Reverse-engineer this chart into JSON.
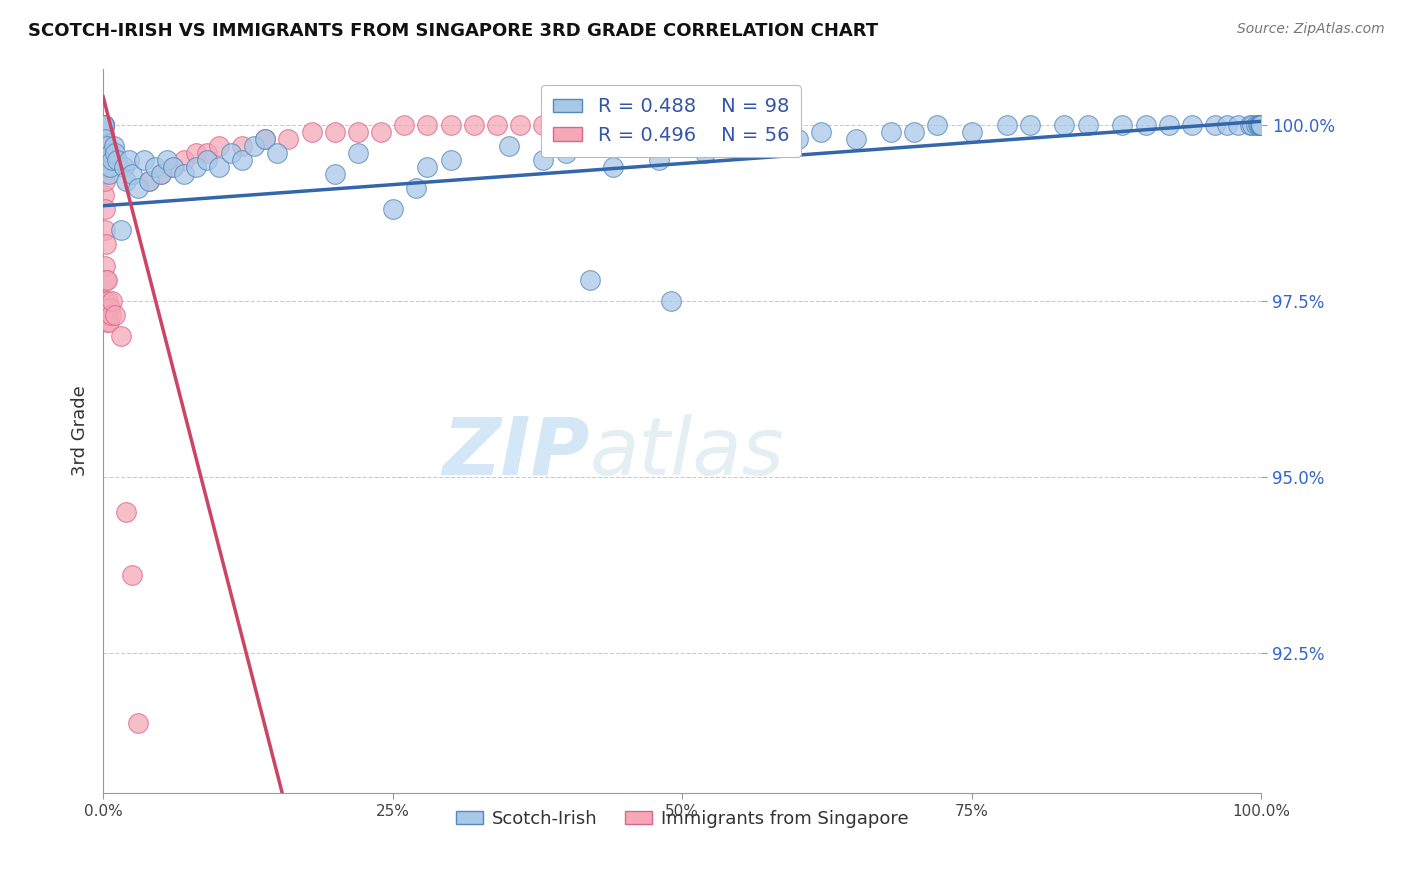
{
  "title": "SCOTCH-IRISH VS IMMIGRANTS FROM SINGAPORE 3RD GRADE CORRELATION CHART",
  "source_text": "Source: ZipAtlas.com",
  "ylabel": "3rd Grade",
  "r_blue": 0.488,
  "n_blue": 98,
  "r_pink": 0.496,
  "n_pink": 56,
  "blue_color": "#a8c8e8",
  "pink_color": "#f4a8b8",
  "blue_edge_color": "#5588bb",
  "pink_edge_color": "#dd6688",
  "blue_line_color": "#3366aa",
  "pink_line_color": "#cc4466",
  "legend_blue_label": "Scotch-Irish",
  "legend_pink_label": "Immigrants from Singapore",
  "watermark_zip": "ZIP",
  "watermark_atlas": "atlas",
  "xlim": [
    0,
    100
  ],
  "ylim": [
    90.5,
    100.8
  ],
  "y_ticks": [
    92.5,
    95.0,
    97.5,
    100.0
  ],
  "x_ticks": [
    0,
    25,
    50,
    75,
    100
  ],
  "blue_scatter_x": [
    0.1,
    0.1,
    0.1,
    0.1,
    0.1,
    0.2,
    0.2,
    0.3,
    0.3,
    0.4,
    0.5,
    0.6,
    0.7,
    0.8,
    0.9,
    1.0,
    1.2,
    1.5,
    1.8,
    2.0,
    2.2,
    2.5,
    3.0,
    3.5,
    4.0,
    4.5,
    5.0,
    5.5,
    6.0,
    7.0,
    8.0,
    9.0,
    10.0,
    11.0,
    12.0,
    13.0,
    14.0,
    15.0,
    20.0,
    22.0,
    25.0,
    27.0,
    28.0,
    30.0,
    35.0,
    38.0,
    40.0,
    42.0,
    44.0,
    45.0,
    46.0,
    47.0,
    48.0,
    49.0,
    50.0,
    51.0,
    52.0,
    53.0,
    54.0,
    55.0,
    56.0,
    57.0,
    58.0,
    60.0,
    62.0,
    65.0,
    68.0,
    70.0,
    72.0,
    75.0,
    78.0,
    80.0,
    83.0,
    85.0,
    88.0,
    90.0,
    92.0,
    94.0,
    96.0,
    97.0,
    98.0,
    99.0,
    99.2,
    99.5,
    99.7,
    99.8,
    99.9,
    100.0,
    100.0,
    100.0,
    100.0,
    100.0,
    100.0,
    100.0,
    100.0,
    100.0,
    100.0,
    100.0,
    100.0,
    100.0
  ],
  "blue_scatter_y": [
    100.0,
    100.0,
    100.0,
    100.0,
    99.5,
    99.6,
    99.8,
    99.4,
    99.7,
    99.5,
    99.3,
    99.4,
    99.6,
    99.5,
    99.7,
    99.6,
    99.5,
    98.5,
    99.4,
    99.2,
    99.5,
    99.3,
    99.1,
    99.5,
    99.2,
    99.4,
    99.3,
    99.5,
    99.4,
    99.3,
    99.4,
    99.5,
    99.4,
    99.6,
    99.5,
    99.7,
    99.8,
    99.6,
    99.3,
    99.6,
    98.8,
    99.1,
    99.4,
    99.5,
    99.7,
    99.5,
    99.6,
    97.8,
    99.4,
    99.7,
    99.8,
    99.9,
    99.5,
    97.5,
    99.7,
    99.8,
    99.6,
    99.7,
    99.8,
    99.9,
    99.8,
    99.9,
    99.7,
    99.8,
    99.9,
    99.8,
    99.9,
    99.9,
    100.0,
    99.9,
    100.0,
    100.0,
    100.0,
    100.0,
    100.0,
    100.0,
    100.0,
    100.0,
    100.0,
    100.0,
    100.0,
    100.0,
    100.0,
    100.0,
    100.0,
    100.0,
    100.0,
    100.0,
    100.0,
    100.0,
    100.0,
    100.0,
    100.0,
    100.0,
    100.0,
    100.0,
    100.0,
    100.0,
    100.0,
    100.0
  ],
  "pink_scatter_x": [
    0.05,
    0.05,
    0.05,
    0.05,
    0.08,
    0.08,
    0.1,
    0.1,
    0.1,
    0.1,
    0.12,
    0.15,
    0.15,
    0.2,
    0.2,
    0.2,
    0.25,
    0.25,
    0.3,
    0.3,
    0.35,
    0.4,
    0.5,
    0.6,
    0.7,
    0.8,
    1.0,
    1.5,
    2.0,
    2.5,
    3.0,
    4.0,
    5.0,
    6.0,
    7.0,
    8.0,
    9.0,
    10.0,
    12.0,
    14.0,
    16.0,
    18.0,
    20.0,
    22.0,
    24.0,
    26.0,
    28.0,
    30.0,
    32.0,
    34.0,
    36.0,
    38.0,
    40.0,
    42.0,
    44.0,
    46.0
  ],
  "pink_scatter_y": [
    100.0,
    100.0,
    100.0,
    99.8,
    99.9,
    99.7,
    99.5,
    99.6,
    99.3,
    99.0,
    99.4,
    99.2,
    98.8,
    98.5,
    98.0,
    97.5,
    98.3,
    97.8,
    97.8,
    97.2,
    97.3,
    97.5,
    97.2,
    97.4,
    97.3,
    97.5,
    97.3,
    97.0,
    94.5,
    93.6,
    91.5,
    99.2,
    99.3,
    99.4,
    99.5,
    99.6,
    99.6,
    99.7,
    99.7,
    99.8,
    99.8,
    99.9,
    99.9,
    99.9,
    99.9,
    100.0,
    100.0,
    100.0,
    100.0,
    100.0,
    100.0,
    100.0,
    100.0,
    100.0,
    100.0,
    100.0
  ],
  "blue_trend_x0": 0,
  "blue_trend_y0": 98.85,
  "blue_trend_x1": 100,
  "blue_trend_y1": 100.05,
  "pink_trend_x0": 0,
  "pink_trend_y0": 100.4,
  "pink_trend_x1": 5,
  "pink_trend_y1": 97.2
}
